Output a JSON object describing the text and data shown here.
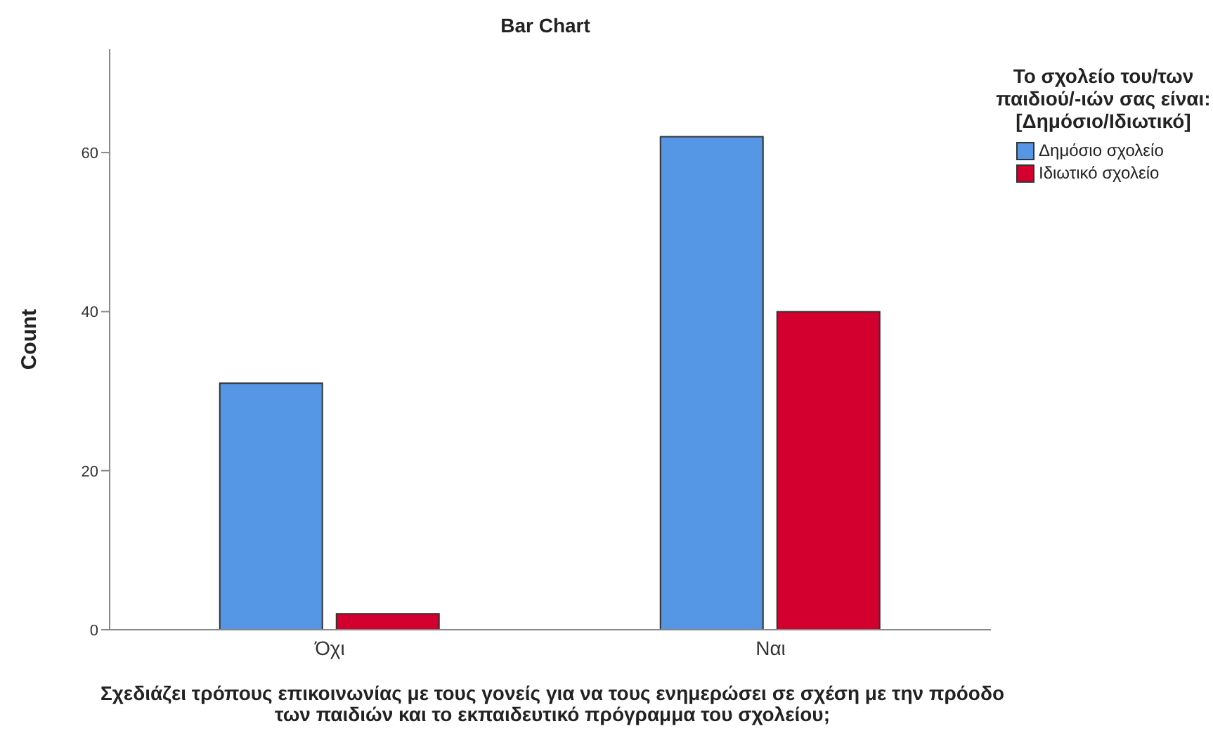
{
  "chart_data": {
    "type": "bar",
    "title": "Bar Chart",
    "xlabel": "Σχεδιάζει τρόπους επικοινωνίας με τους γονείς για να τους ενημερώσει σε σχέση με την πρόοδο των παιδιών και το εκπαιδευτικό πρόγραμμα του σχολείου;",
    "ylabel": "Count",
    "legend_title": "Το σχολείο του/των παιδιού/-ιών σας είναι: [Δημόσιο/Ιδιωτικό]",
    "categories": [
      "Όχι",
      "Ναι"
    ],
    "series": [
      {
        "name": "Δημόσιο σχολείο",
        "color": "#5596e5",
        "values": [
          31,
          62
        ]
      },
      {
        "name": "Ιδιωτικό σχολείο",
        "color": "#d3002f",
        "values": [
          2,
          40
        ]
      }
    ],
    "ylim": [
      0,
      73
    ],
    "yticks": [
      0,
      20,
      40,
      60
    ],
    "grid": false,
    "legend": "top right"
  }
}
